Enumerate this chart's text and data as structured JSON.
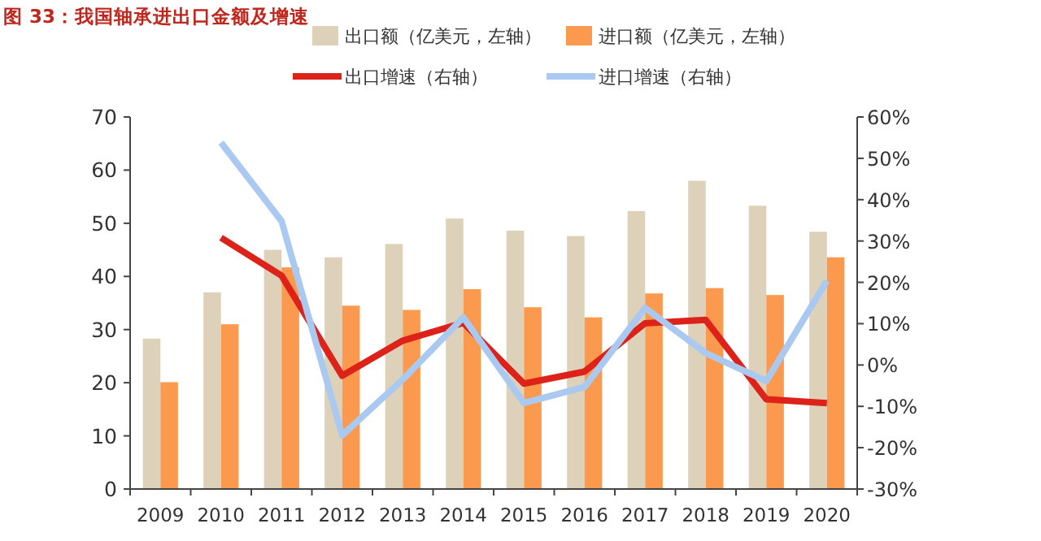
{
  "chart_data": {
    "type": "bar",
    "title": "图 33：我国轴承进出口金额及增速",
    "categories": [
      "2009",
      "2010",
      "2011",
      "2012",
      "2013",
      "2014",
      "2015",
      "2016",
      "2017",
      "2018",
      "2019",
      "2020"
    ],
    "series": [
      {
        "name": "出口额（亿美元，左轴）",
        "color": "#ddd1b9",
        "values": [
          28.3,
          37,
          45,
          43.6,
          46.1,
          50.9,
          48.6,
          47.6,
          52.3,
          58,
          53.3,
          48.4
        ]
      },
      {
        "name": "进口额（亿美元，左轴）",
        "color": "#fb9a4e",
        "values": [
          20.1,
          31,
          41.7,
          34.5,
          33.7,
          37.6,
          34.2,
          32.3,
          36.8,
          37.8,
          36.5,
          43.6
        ]
      },
      {
        "name": "出口增速（右轴）",
        "type": "line",
        "axis": "y2",
        "color": "#dd2219",
        "values": [
          null,
          30.8,
          21.6,
          -2.6,
          5.9,
          10.2,
          -4.5,
          -1.6,
          10.1,
          10.9,
          -8.3,
          -9.2
        ]
      },
      {
        "name": "进口增速（右轴）",
        "type": "line",
        "axis": "y2",
        "color": "#a9c9f1",
        "values": [
          null,
          53.8,
          34.8,
          -17,
          -3.5,
          11.5,
          -9.2,
          -5.3,
          13.8,
          2.9,
          -3.9,
          20.4
        ]
      }
    ],
    "ylim": [
      0,
      70
    ],
    "yticks": [
      0,
      10,
      20,
      30,
      40,
      50,
      60,
      70
    ],
    "y2lim": [
      -30,
      60
    ],
    "y2ticks": [
      {
        "value": -30,
        "label": "-30%"
      },
      {
        "value": -20,
        "label": "-20%"
      },
      {
        "value": -10,
        "label": "-10%"
      },
      {
        "value": 0,
        "label": "0%"
      },
      {
        "value": 10,
        "label": "10%"
      },
      {
        "value": 20,
        "label": "20%"
      },
      {
        "value": 30,
        "label": "30%"
      },
      {
        "value": 40,
        "label": "40%"
      },
      {
        "value": 50,
        "label": "50%"
      },
      {
        "value": 60,
        "label": "60%"
      }
    ],
    "legend": "top"
  }
}
